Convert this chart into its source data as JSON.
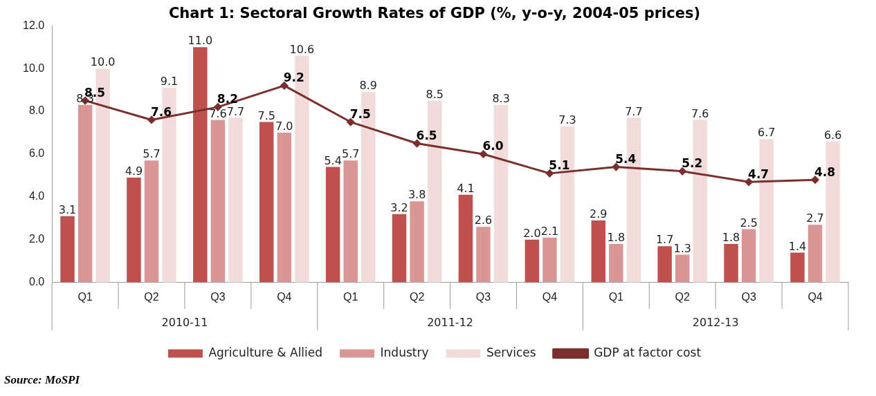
{
  "chart_data": {
    "type": "bar",
    "title": "Chart 1: Sectoral Growth Rates of GDP (%, y-o-y, 2004-05 prices)",
    "categories": [
      "Q1",
      "Q2",
      "Q3",
      "Q4",
      "Q1",
      "Q2",
      "Q3",
      "Q4",
      "Q1",
      "Q2",
      "Q3",
      "Q4"
    ],
    "series": [
      {
        "name": "Agriculture & Allied",
        "color": "#c0504d",
        "values": [
          3.1,
          4.9,
          11.0,
          7.5,
          5.4,
          3.2,
          4.1,
          2.0,
          2.9,
          1.7,
          1.8,
          1.4
        ],
        "value_labels": [
          "3.1",
          "4.9",
          "11.0",
          "7.5",
          "5.4",
          "3.2",
          "4.1",
          "2.0",
          "2.9",
          "1.7",
          "1.8",
          "1.4"
        ]
      },
      {
        "name": "Industry",
        "color": "#d99694",
        "values": [
          8.3,
          5.7,
          7.6,
          7.0,
          5.7,
          3.8,
          2.6,
          2.1,
          1.8,
          1.3,
          2.5,
          2.7
        ],
        "value_labels": [
          "8.3",
          "5.7",
          "7.6",
          "7.0",
          "5.7",
          "3.8",
          "2.6",
          "2.1",
          "1.8",
          "1.3",
          "2.5",
          "2.7"
        ]
      },
      {
        "name": "Services",
        "color": "#f2dcdb",
        "values": [
          10.0,
          9.1,
          7.7,
          10.6,
          8.9,
          8.5,
          8.3,
          7.3,
          7.7,
          7.6,
          6.7,
          6.6
        ],
        "value_labels": [
          "10.0",
          "9.1",
          "7.7",
          "10.6",
          "8.9",
          "8.5",
          "8.3",
          "7.3",
          "7.7",
          "7.6",
          "6.7",
          "6.6"
        ]
      },
      {
        "name": "GDP at factor cost",
        "type": "line",
        "color": "#7b2f2d",
        "values": [
          8.5,
          7.6,
          8.2,
          9.2,
          7.5,
          6.5,
          6.0,
          5.1,
          5.4,
          5.2,
          4.7,
          4.8
        ],
        "value_labels": [
          "8.5",
          "7.6",
          "8.2",
          "9.2",
          "7.5",
          "6.5",
          "6.0",
          "5.1",
          "5.4",
          "5.2",
          "4.7",
          "4.8"
        ]
      }
    ],
    "ylim": [
      0,
      12
    ],
    "yticks": [
      {
        "value": 0,
        "label": "0.0"
      },
      {
        "value": 2,
        "label": "2.0"
      },
      {
        "value": 4,
        "label": "4.0"
      },
      {
        "value": 6,
        "label": "6.0"
      },
      {
        "value": 8,
        "label": "8.0"
      },
      {
        "value": 10,
        "label": "10.0"
      },
      {
        "value": 12,
        "label": "12.0"
      }
    ],
    "grid": false,
    "legend": "bottom",
    "marker": "diamond",
    "line_style": "solid",
    "annotations": [
      "2010-11",
      "2011-12",
      "2012-13",
      "Source: MoSPI"
    ]
  }
}
